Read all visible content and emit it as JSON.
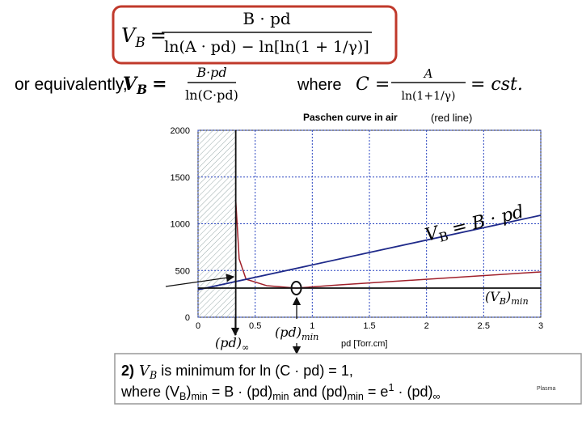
{
  "header": {
    "lhs": [
      "V",
      "B",
      "="
    ],
    "numerator": "B · pd",
    "denominator": "ln(A · pd)  − ln[ln(1 + 1/γ)]"
  },
  "equivalent": {
    "lead": "or equivalently,",
    "lhs": [
      "V",
      "B",
      "="
    ],
    "numerator": "B·pd",
    "denominator": "ln(C·pd)",
    "where": "where",
    "c_lhs": "C =",
    "c_numerator": "A",
    "c_denominator": "ln(1+1/γ)",
    "c_rhs": "= cst."
  },
  "chart_data": {
    "type": "line",
    "title": "Paschen curve in air",
    "subtitle": "(red line)",
    "x_label": "pd [Torr.cm]",
    "xlim": [
      0,
      3
    ],
    "ylim": [
      0,
      2000
    ],
    "xticks": [
      0,
      0.5,
      1,
      1.5,
      2,
      2.5,
      3
    ],
    "yticks": [
      0,
      500,
      1000,
      1500,
      2000
    ],
    "grid": true,
    "series": [
      {
        "color": "#a0202a",
        "x": [
          0.33,
          0.36,
          0.42,
          0.6,
          0.86,
          1.24,
          3
        ],
        "values": [
          1255,
          623,
          407,
          338,
          312,
          346,
          485
        ]
      },
      {
        "color": "#1f2a8a",
        "x": [
          0,
          3
        ],
        "values": [
          294,
          1091
        ]
      },
      {
        "color": "#111111",
        "x": [
          0,
          3
        ],
        "values": [
          312,
          312
        ]
      },
      {
        "color": "#111111",
        "x": [
          0.33,
          0.33
        ],
        "values": [
          2000,
          0
        ]
      }
    ],
    "marker": {
      "x": 0.86,
      "y": 312
    },
    "annotations": {
      "line_label": [
        "V",
        "B",
        " = B · pd"
      ],
      "vb_min": [
        "(V",
        "B",
        ")",
        "min"
      ],
      "pd_min": [
        "(pd)",
        "min"
      ],
      "pd_inf": [
        "(pd)",
        "∞"
      ]
    }
  },
  "conclusion": {
    "line1": [
      "2)",
      "V",
      "B",
      " is minimum for ln (C · pd) = 1,"
    ],
    "line2": [
      "where (V",
      "B",
      ")",
      "min",
      " = B · (pd)",
      "min",
      " and (pd)",
      "min",
      " = e",
      "1",
      " · (pd)",
      "∞"
    ]
  },
  "footer": "Plasma"
}
